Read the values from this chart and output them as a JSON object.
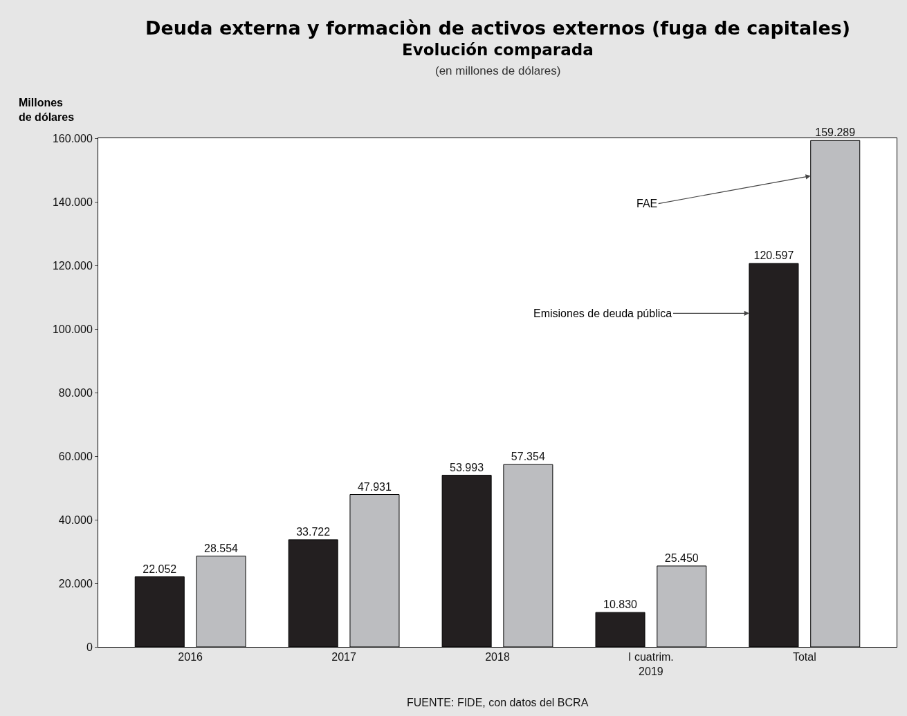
{
  "chart_data": {
    "type": "bar",
    "title": "Deuda externa y formaciòn de activos externos (fuga de capitales)",
    "subtitle": "Evolución comparada",
    "ylabel": "Millones\nde dólares",
    "annotations": [
      "(en millones de dólares)",
      "FUENTE: FIDE, con datos del BCRA"
    ],
    "categories": [
      "2016",
      "2017",
      "2018",
      "I cuatrim.\n2019",
      "Total"
    ],
    "series": [
      {
        "name": "Emisiones de deuda pública",
        "color": "#231f20",
        "values": [
          22052,
          33722,
          53993,
          10830,
          120597
        ],
        "value_labels": [
          "22.052",
          "33.722",
          "53.993",
          "10.830",
          "120.597"
        ]
      },
      {
        "name": "FAE",
        "color": "#bcbdc0",
        "values": [
          28554,
          47931,
          57354,
          25450,
          159289
        ],
        "value_labels": [
          "28.554",
          "47.931",
          "57.354",
          "25.450",
          "159.289"
        ]
      }
    ],
    "ylim": [
      0,
      160000
    ],
    "yticks": [
      {
        "value": 0,
        "label": "0"
      },
      {
        "value": 20000,
        "label": "20.000"
      },
      {
        "value": 40000,
        "label": "40.000"
      },
      {
        "value": 60000,
        "label": "60.000"
      },
      {
        "value": 80000,
        "label": "80.000"
      },
      {
        "value": 100000,
        "label": "100.000"
      },
      {
        "value": 120000,
        "label": "120.000"
      },
      {
        "value": 140000,
        "label": "140.000"
      },
      {
        "value": 160000,
        "label": "160.000"
      }
    ],
    "grid": false,
    "legend": false
  }
}
